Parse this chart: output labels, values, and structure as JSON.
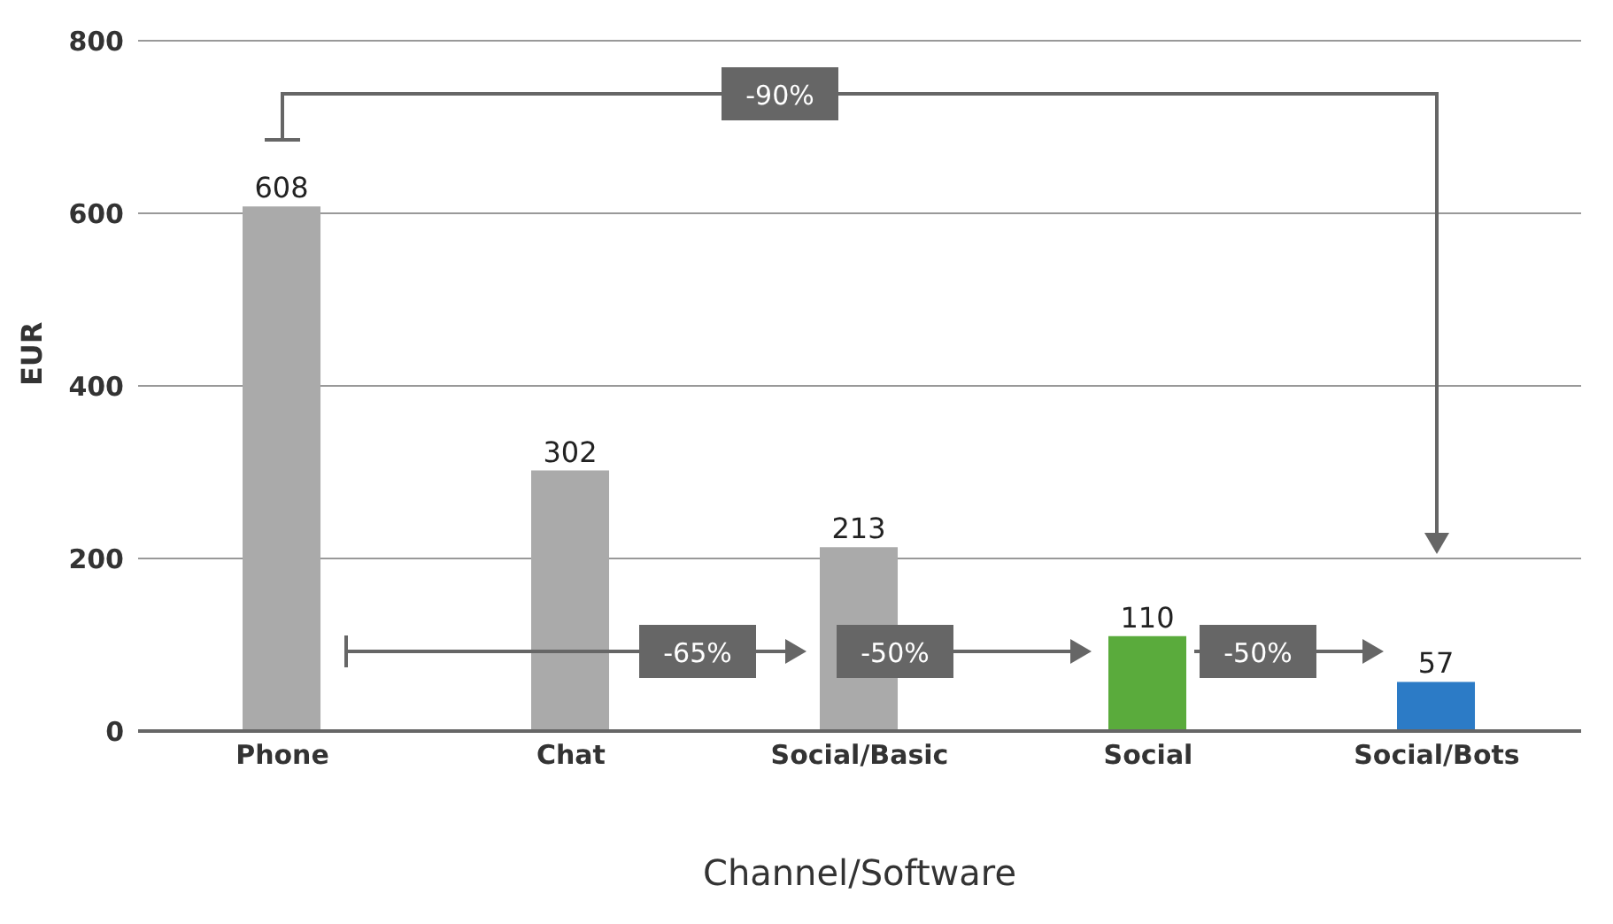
{
  "chart_data": {
    "type": "bar",
    "xlabel": "Channel/Software",
    "ylabel": "EUR",
    "categories": [
      "Phone",
      "Chat",
      "Social/Basic",
      "Social",
      "Social/Bots"
    ],
    "values": [
      608,
      302,
      213,
      110,
      57
    ],
    "colors": [
      "#aaaaaa",
      "#aaaaaa",
      "#aaaaaa",
      "#5aab3c",
      "#2c7bc6"
    ],
    "ylim": [
      0,
      800
    ],
    "yticks": [
      0,
      200,
      400,
      600,
      800
    ],
    "grid": "y",
    "data_labels": true,
    "annotations": [
      "-90%",
      "-65%",
      "-50%",
      "-50%"
    ]
  }
}
